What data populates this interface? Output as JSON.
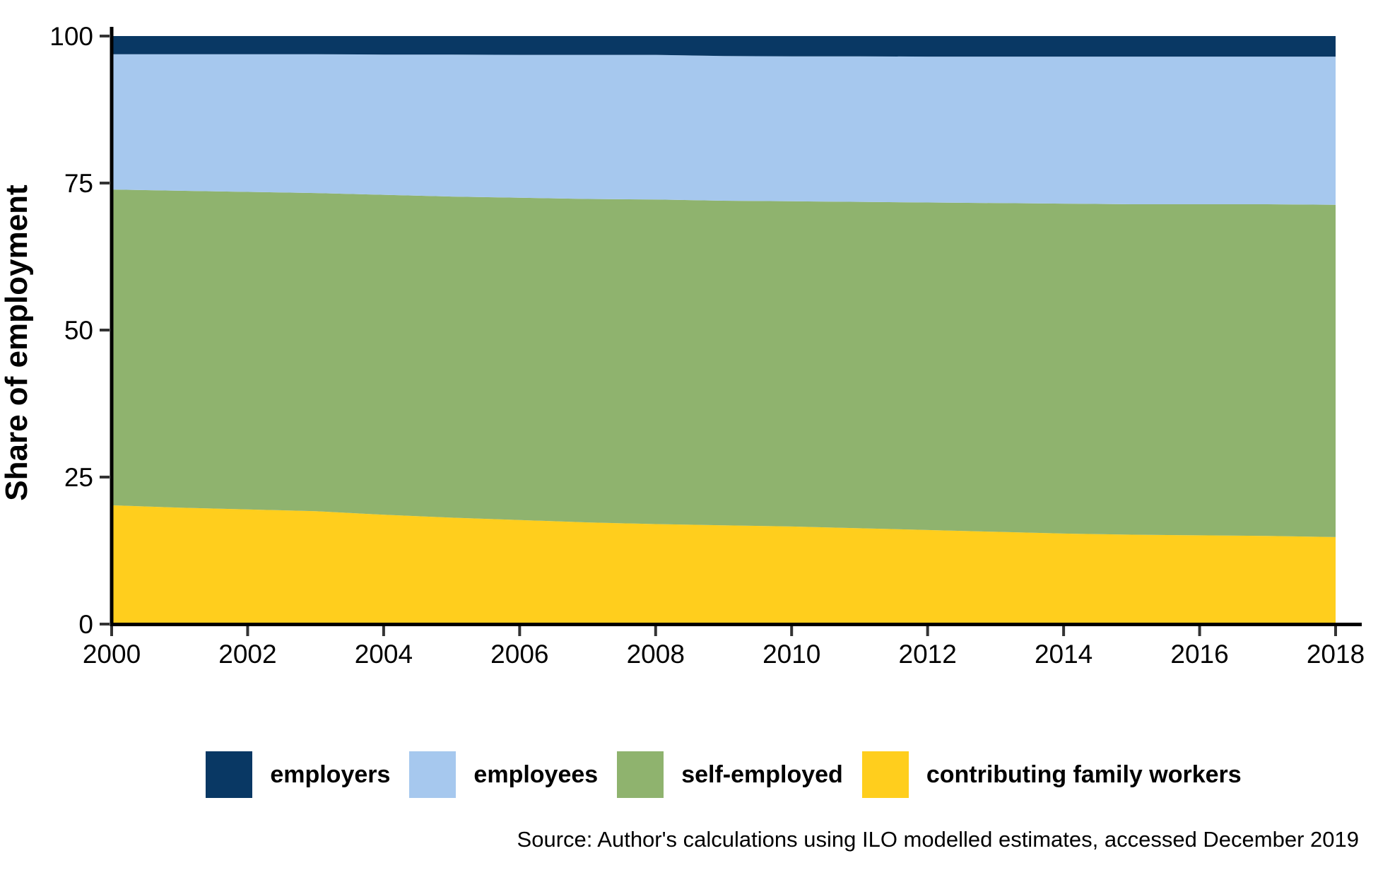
{
  "chart_data": {
    "type": "area",
    "stacked": true,
    "title": "",
    "xlabel": "",
    "ylabel": "Share of employment",
    "xlim": [
      2000,
      2018
    ],
    "ylim": [
      0,
      100
    ],
    "yticks": [
      0,
      25,
      50,
      75,
      100
    ],
    "xticks": [
      2000,
      2002,
      2004,
      2006,
      2008,
      2010,
      2012,
      2014,
      2016,
      2018
    ],
    "grid": false,
    "legend_position": "bottom",
    "x": [
      2000,
      2001,
      2002,
      2003,
      2004,
      2005,
      2006,
      2007,
      2008,
      2009,
      2010,
      2011,
      2012,
      2013,
      2014,
      2015,
      2016,
      2017,
      2018
    ],
    "series": [
      {
        "name": "contributing family workers",
        "color": "#FFCE1D",
        "values": [
          20.2,
          19.8,
          19.5,
          19.2,
          18.6,
          18.1,
          17.7,
          17.3,
          17.0,
          16.8,
          16.6,
          16.3,
          16.0,
          15.7,
          15.4,
          15.2,
          15.1,
          15.0,
          14.8
        ]
      },
      {
        "name": "self-employed",
        "color": "#8FB36E",
        "values": [
          53.7,
          53.9,
          54.0,
          54.1,
          54.4,
          54.6,
          54.8,
          55.0,
          55.2,
          55.2,
          55.3,
          55.5,
          55.7,
          55.9,
          56.1,
          56.2,
          56.3,
          56.4,
          56.5
        ]
      },
      {
        "name": "employees",
        "color": "#A6C8EE",
        "values": [
          23.0,
          23.2,
          23.4,
          23.6,
          23.85,
          24.15,
          24.3,
          24.5,
          24.6,
          24.6,
          24.65,
          24.75,
          24.8,
          24.9,
          25.0,
          25.1,
          25.1,
          25.1,
          25.2
        ]
      },
      {
        "name": "employers",
        "color": "#093864",
        "values": [
          3.1,
          3.1,
          3.1,
          3.1,
          3.15,
          3.15,
          3.2,
          3.2,
          3.2,
          3.4,
          3.45,
          3.45,
          3.5,
          3.5,
          3.5,
          3.5,
          3.5,
          3.5,
          3.5
        ]
      }
    ]
  },
  "legend": {
    "items": [
      {
        "label": "employers",
        "color": "#093864"
      },
      {
        "label": "employees",
        "color": "#A6C8EE"
      },
      {
        "label": "self-employed",
        "color": "#8FB36E"
      },
      {
        "label": "contributing family workers",
        "color": "#FFCE1D"
      }
    ]
  },
  "source_note": "Source: Author's calculations using ILO modelled estimates, accessed December 2019"
}
